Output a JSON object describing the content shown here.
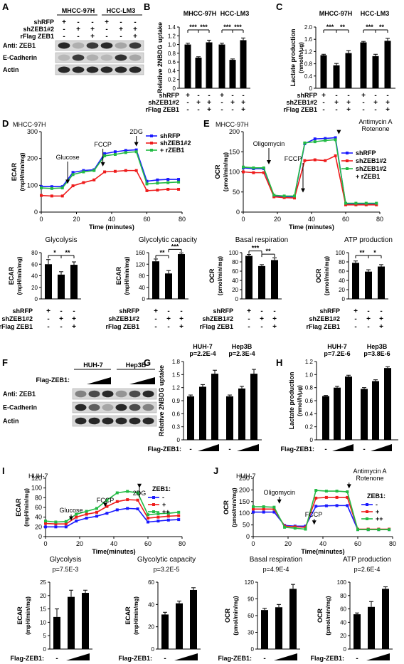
{
  "panels": {
    "A": {
      "label": "A",
      "headers": [
        "MHCC-97H",
        "HCC-LM3"
      ],
      "rows": [
        {
          "name": "shRFP",
          "marks": [
            "+",
            "-",
            "-",
            "+",
            "-",
            "-"
          ]
        },
        {
          "name": "shZEB1#2",
          "marks": [
            "-",
            "+",
            "+",
            "-",
            "+",
            "+"
          ]
        },
        {
          "name": "rFlag ZEB1",
          "marks": [
            "-",
            "-",
            "+",
            "-",
            "-",
            "+"
          ]
        }
      ],
      "blots": [
        "Anti:  ZEB1",
        "E-Cadherin",
        "Actin"
      ],
      "bands": [
        [
          1.0,
          0.25,
          0.9,
          1.0,
          0.3,
          0.9
        ],
        [
          0.2,
          0.9,
          0.25,
          0.2,
          0.95,
          0.3
        ],
        [
          1.0,
          1.0,
          1.0,
          1.0,
          1.0,
          1.0
        ]
      ]
    },
    "B": {
      "label": "B",
      "groups": [
        "MHCC-97H",
        "HCC-LM3"
      ],
      "chart_data": {
        "type": "bar",
        "ylabel": "Relative 2NBDG uptake",
        "ylim": [
          0,
          1.4
        ],
        "yticks": [
          "0",
          "0.2",
          "0.4",
          "0.6",
          "0.8",
          "1.0",
          "1.2",
          "1.4"
        ],
        "values": [
          1.0,
          0.7,
          1.05,
          1.0,
          0.65,
          1.1
        ],
        "errors": [
          0.03,
          0.02,
          0.05,
          0.03,
          0.02,
          0.05
        ],
        "sig": [
          "***",
          "***",
          "***",
          "***"
        ]
      },
      "rows": [
        {
          "name": "shRFP",
          "marks": [
            "+",
            "-",
            "-",
            "+",
            "-",
            "-"
          ]
        },
        {
          "name": "shZEB1#2",
          "marks": [
            "-",
            "+",
            "+",
            "-",
            "+",
            "+"
          ]
        },
        {
          "name": "rFlag ZEB1",
          "marks": [
            "-",
            "-",
            "+",
            "-",
            "-",
            "+"
          ]
        }
      ]
    },
    "C": {
      "label": "C",
      "groups": [
        "MHCC-97H",
        "HCC-LM3"
      ],
      "chart_data": {
        "type": "bar",
        "ylabel": "Lactate production (nmol/h/μg)",
        "ylim": [
          0,
          2.0
        ],
        "yticks": [
          "0",
          "0.4",
          "0.8",
          "1.2",
          "1.6",
          "2.0"
        ],
        "values": [
          1.08,
          0.75,
          1.15,
          1.5,
          1.05,
          1.55
        ],
        "errors": [
          0.03,
          0.06,
          0.08,
          0.03,
          0.06,
          0.08
        ],
        "sig": [
          "***",
          "**",
          "***",
          "**"
        ]
      },
      "rows": [
        {
          "name": "shRFP",
          "marks": [
            "+",
            "-",
            "-",
            "+",
            "-",
            "-"
          ]
        },
        {
          "name": "shZEB1#2",
          "marks": [
            "-",
            "+",
            "+",
            "-",
            "+",
            "+"
          ]
        },
        {
          "name": "rFlag ZEB1",
          "marks": [
            "-",
            "-",
            "+",
            "-",
            "-",
            "+"
          ]
        }
      ]
    },
    "D": {
      "label": "D",
      "cell": "MHCC-97H",
      "chart_data": {
        "type": "line",
        "xlabel": "Time (minutes)",
        "ylabel": "ECAR (mpH/min/mg)",
        "xlim": [
          0,
          80
        ],
        "ylim": [
          0,
          300
        ],
        "xticks": [
          "0",
          "20",
          "40",
          "60",
          "80"
        ],
        "yticks": [
          "0",
          "100",
          "200",
          "300"
        ],
        "x": [
          0,
          6,
          12,
          18,
          24,
          30,
          36,
          42,
          48,
          54,
          60,
          66,
          72,
          78
        ],
        "series": [
          {
            "name": "shRFP",
            "color": "#1a1aff",
            "values": [
              95,
              95,
              95,
              148,
              155,
              158,
              218,
              225,
              230,
              232,
              115,
              120,
              122,
              122
            ]
          },
          {
            "name": "shZEB1#2",
            "color": "#ee1c1c",
            "values": [
              62,
              60,
              60,
              98,
              110,
              120,
              150,
              152,
              155,
              155,
              80,
              82,
              85,
              85
            ]
          },
          {
            "name": "+ rZEB1",
            "color": "#22bb44",
            "values": [
              90,
              88,
              90,
              140,
              150,
              155,
              210,
              215,
              222,
              225,
              105,
              108,
              110,
              112
            ]
          }
        ],
        "annotations": [
          "Glucose",
          "FCCP",
          "2DG"
        ]
      },
      "legend": [
        "shRFP",
        "shZEB1#2",
        "+ rZEB1"
      ]
    },
    "D_bars": [
      {
        "title": "Glycolysis",
        "chart_data": {
          "type": "bar",
          "ylabel": "ECAR (mpH/min/mg)",
          "ylim": [
            0,
            80
          ],
          "yticks": [
            "0",
            "20",
            "40",
            "60",
            "80"
          ],
          "values": [
            60,
            42,
            59
          ],
          "errors": [
            8,
            5,
            5
          ],
          "sig": [
            "*",
            "**"
          ]
        }
      },
      {
        "title": "Glycolytic capacity",
        "chart_data": {
          "type": "bar",
          "ylabel": "ECAR (mpH/min/mg)",
          "ylim": [
            0,
            160
          ],
          "yticks": [
            "0",
            "40",
            "80",
            "120",
            "160"
          ],
          "values": [
            130,
            88,
            155
          ],
          "errors": [
            8,
            10,
            4
          ],
          "sig": [
            "**",
            "***"
          ]
        }
      }
    ],
    "E": {
      "label": "E",
      "cell": "MHCC-97H",
      "chart_data": {
        "type": "line",
        "xlabel": "Time (minutes)",
        "ylabel": "OCR (pmol/min/mg)",
        "xlim": [
          0,
          80
        ],
        "ylim": [
          0,
          200
        ],
        "xticks": [
          "0",
          "20",
          "40",
          "60",
          "80"
        ],
        "yticks": [
          "0",
          "50",
          "100",
          "150",
          "200"
        ],
        "x": [
          0,
          6,
          12,
          18,
          24,
          30,
          36,
          42,
          48,
          54,
          60,
          66,
          72,
          78
        ],
        "series": [
          {
            "name": "shRFP",
            "color": "#1a1aff",
            "values": [
              110,
              108,
              108,
              40,
              38,
              38,
              170,
              182,
              183,
              185,
              20,
              20,
              20,
              20
            ]
          },
          {
            "name": "shZEB1#2",
            "color": "#ee1c1c",
            "values": [
              100,
              98,
              98,
              38,
              36,
              35,
              128,
              130,
              128,
              140,
              18,
              18,
              18,
              18
            ]
          },
          {
            "name": "shZEB1#2 + rZEB1",
            "color": "#22bb44",
            "values": [
              112,
              110,
              110,
              42,
              40,
              40,
              172,
              175,
              178,
              180,
              22,
              22,
              22,
              22
            ]
          }
        ],
        "annotations": [
          "Oligomycin",
          "FCCP",
          "Antimycin A",
          "Rotenone"
        ]
      },
      "legend": [
        "shRFP",
        "shZEB1#2",
        "shZEB1#2",
        "+ rZEB1"
      ]
    },
    "E_bars": [
      {
        "title": "Basal respiration",
        "chart_data": {
          "type": "bar",
          "ylabel": "OCR (pmol/min/mg)",
          "ylim": [
            0,
            100
          ],
          "yticks": [
            "0",
            "20",
            "40",
            "60",
            "80",
            "100"
          ],
          "values": [
            93,
            71,
            84
          ],
          "errors": [
            3,
            3,
            5
          ],
          "sig": [
            "***",
            "**"
          ]
        }
      },
      {
        "title": "ATP production",
        "chart_data": {
          "type": "bar",
          "ylabel": "OCR (pmol/min/mg)",
          "ylim": [
            0,
            100
          ],
          "yticks": [
            "0",
            "20",
            "40",
            "60",
            "80",
            "100"
          ],
          "values": [
            78,
            59,
            70
          ],
          "errors": [
            4,
            4,
            4
          ],
          "sig": [
            "**",
            "*"
          ]
        }
      }
    ],
    "DE_rows": [
      {
        "name": "shRFP",
        "marks": [
          "+",
          "-",
          "-"
        ]
      },
      {
        "name": "shZEB1#2",
        "marks": [
          "-",
          "+",
          "+"
        ]
      },
      {
        "name": "rFlag ZEB1",
        "marks": [
          "-",
          "-",
          "+"
        ]
      }
    ],
    "F": {
      "label": "F",
      "headers": [
        "HUH-7",
        "Hep3B"
      ],
      "treatment": "Flag-ZEB1:",
      "blots": [
        "Anti:  ZEB1",
        "E-Cadherin",
        "Actin"
      ],
      "bands": [
        [
          0.5,
          0.8,
          1.0,
          0.4,
          0.8,
          1.0
        ],
        [
          1.0,
          0.7,
          0.3,
          1.0,
          0.8,
          0.5
        ],
        [
          1.0,
          1.0,
          1.0,
          1.0,
          1.0,
          1.0
        ]
      ]
    },
    "G": {
      "label": "G",
      "groups": [
        "HUH-7",
        "Hep3B"
      ],
      "pvalues": [
        "p=2.2E-4",
        "p=2.3E-4"
      ],
      "treatment": "Flag-ZEB1:",
      "chart_data": {
        "type": "bar",
        "ylabel": "Relative 2NBDG uptake",
        "ylim": [
          0,
          1.8
        ],
        "yticks": [
          "0",
          "0.3",
          "0.6",
          "0.9",
          "1.2",
          "1.5",
          "1.8"
        ],
        "values": [
          1.0,
          1.22,
          1.52,
          1.0,
          1.18,
          1.52
        ],
        "errors": [
          0.03,
          0.05,
          0.08,
          0.03,
          0.05,
          0.1
        ]
      }
    },
    "H": {
      "label": "H",
      "groups": [
        "HUH-7",
        "Hep3B"
      ],
      "pvalues": [
        "p=7.2E-6",
        "p=3.8E-6"
      ],
      "treatment": "Flag-ZEB1:",
      "chart_data": {
        "type": "bar",
        "ylabel": "Lactate production (nmol/h/μg)",
        "ylim": [
          0,
          1.2
        ],
        "yticks": [
          "0",
          "0.2",
          "0.4",
          "0.6",
          "0.8",
          "1.0",
          "1.2"
        ],
        "values": [
          0.67,
          0.8,
          0.97,
          0.78,
          0.9,
          1.1
        ],
        "errors": [
          0.01,
          0.02,
          0.02,
          0.02,
          0.02,
          0.02
        ]
      }
    },
    "I": {
      "label": "I",
      "cell": "HUH-7",
      "legend_title": "ZEB1:",
      "chart_data": {
        "type": "line",
        "xlabel": "Time(minutes)",
        "ylabel": "ECAR (mpH/min/mg)",
        "xlim": [
          0,
          80
        ],
        "ylim": [
          0,
          120
        ],
        "xticks": [
          "0",
          "20",
          "40",
          "60",
          "80"
        ],
        "yticks": [
          "0",
          "20",
          "40",
          "60",
          "80",
          "100",
          "120"
        ],
        "x": [
          0,
          6,
          12,
          18,
          24,
          30,
          36,
          42,
          48,
          54,
          60,
          66,
          72,
          78
        ],
        "series": [
          {
            "name": "-",
            "color": "#1a1aff",
            "values": [
              20,
              20,
              20,
              32,
              38,
              42,
              48,
              55,
              58,
              57,
              30,
              32,
              34,
              35
            ]
          },
          {
            "name": "+",
            "color": "#ee1c1c",
            "values": [
              27,
              26,
              26,
              40,
              46,
              50,
              62,
              72,
              76,
              75,
              38,
              40,
              42,
              43
            ]
          },
          {
            "name": "++",
            "color": "#22bb44",
            "values": [
              32,
              30,
              31,
              46,
              52,
              58,
              75,
              90,
              93,
              90,
              45,
              47,
              48,
              50
            ]
          }
        ],
        "annotations": [
          "Glucose",
          "FCCP",
          "2DG"
        ]
      }
    },
    "I_bars": [
      {
        "title": "Glycolysis",
        "pvalue": "p=7.5E-3",
        "chart_data": {
          "type": "bar",
          "ylabel": "ECAR (mpH/min/mg)",
          "ylim": [
            0,
            25
          ],
          "yticks": [
            "0",
            "5",
            "10",
            "15",
            "20",
            "25"
          ],
          "values": [
            12,
            19.5,
            21
          ],
          "errors": [
            3,
            2.5,
            1
          ]
        }
      },
      {
        "title": "Glycolytic capacity",
        "pvalue": "p=3.2E-5",
        "chart_data": {
          "type": "bar",
          "ylabel": "ECAR (mpH/min/mg)",
          "ylim": [
            0,
            60
          ],
          "yticks": [
            "0",
            "20",
            "40",
            "60"
          ],
          "values": [
            31,
            41,
            53
          ],
          "errors": [
            2,
            2,
            2
          ]
        }
      }
    ],
    "J": {
      "label": "J",
      "cell": "HUH-7",
      "legend_title": "ZEB1:",
      "chart_data": {
        "type": "line",
        "xlabel": "Time(minutes)",
        "ylabel": "OCR (pmol/min/mg)",
        "xlim": [
          0,
          80
        ],
        "ylim": [
          0,
          250
        ],
        "xticks": [
          "0",
          "20",
          "40",
          "60",
          "80"
        ],
        "yticks": [
          "0",
          "50",
          "100",
          "150",
          "200",
          "250"
        ],
        "x": [
          0,
          6,
          12,
          18,
          24,
          30,
          36,
          42,
          48,
          54,
          60,
          66,
          72,
          78
        ],
        "series": [
          {
            "name": "-",
            "color": "#1a1aff",
            "values": [
              105,
              105,
              105,
              48,
              45,
              45,
              130,
              132,
              133,
              133,
              30,
              30,
              30,
              30
            ]
          },
          {
            "name": "+",
            "color": "#ee1c1c",
            "values": [
              118,
              118,
              118,
              45,
              42,
              40,
              165,
              168,
              168,
              168,
              32,
              32,
              32,
              32
            ]
          },
          {
            "name": "++",
            "color": "#22bb44",
            "values": [
              128,
              128,
              126,
              40,
              36,
              32,
              198,
              195,
              195,
              192,
              30,
              30,
              30,
              30
            ]
          }
        ],
        "annotations": [
          "Oligomycin",
          "FCCP",
          "Antimycin A",
          "Rotenone"
        ]
      }
    },
    "J_bars": [
      {
        "title": "Basal respiration",
        "pvalue": "p=4.9E-4",
        "chart_data": {
          "type": "bar",
          "ylabel": "OCR (pmol/min/mg)",
          "ylim": [
            0,
            120
          ],
          "yticks": [
            "0",
            "30",
            "60",
            "90",
            "120"
          ],
          "values": [
            70,
            75,
            108
          ],
          "errors": [
            3,
            5,
            8
          ]
        }
      },
      {
        "title": "ATP production",
        "pvalue": "p=2.6E-4",
        "chart_data": {
          "type": "bar",
          "ylabel": "OCR (pmol/min/mg)",
          "ylim": [
            0,
            100
          ],
          "yticks": [
            "0",
            "20",
            "40",
            "60",
            "80",
            "100"
          ],
          "values": [
            52,
            63,
            90
          ],
          "errors": [
            2,
            8,
            3
          ]
        }
      }
    ],
    "flag_label": "Flag-ZEB1:",
    "minus_mark": "-"
  }
}
